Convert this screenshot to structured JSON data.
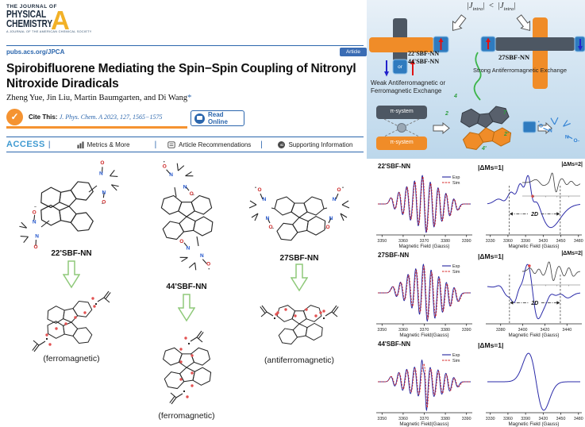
{
  "journal": {
    "masthead_top": "THE JOURNAL OF",
    "masthead_main1": "PHYSICAL",
    "masthead_main2": "CHEMISTRY",
    "masthead_letter": "A",
    "tagline": "A JOURNAL OF THE AMERICAN CHEMICAL SOCIETY",
    "site_url": "pubs.acs.org/JPCA",
    "article_badge": "Article"
  },
  "article": {
    "title": "Spirobifluorene Mediating the Spin−Spin Coupling of Nitronyl Nitroxide Diradicals",
    "authors": "Zheng Yue, Jin Liu, Martin Baumgarten, and Di Wang",
    "corresponding_mark": "*",
    "cite_label": "Cite This:",
    "cite_reference": "J. Phys. Chem. A 2023, 127, 1565−1575",
    "read_online_label": "Read Online",
    "check_icon": "✓"
  },
  "access_bar": {
    "access_label": "ACCESS",
    "separator": "|",
    "items": [
      "Metrics & More",
      "Article Recommendations",
      "Supporting Information"
    ],
    "si_icon_text": "si"
  },
  "structures": {
    "col1": {
      "name": "22'SBF-NN",
      "state": "(ferromagnetic)"
    },
    "col2": {
      "name": "44'SBF-NN",
      "state": "(ferromagnetic)"
    },
    "col3": {
      "name": "27SBF-NN",
      "state": "(antiferromagnetic)"
    }
  },
  "toc_graphic": {
    "inequality": {
      "open": "|",
      "j": "J",
      "sub": "intra",
      "close": "|",
      "lt": "<"
    },
    "left_group": {
      "name_line1": "22'SBF-NN",
      "name_line2": "44'SBF-NN",
      "or_label": "or",
      "caption_line1": "Weak Antiferromagnetic or",
      "caption_line2": "Ferromagnetic Exchange"
    },
    "right_group": {
      "name": "27SBF-NN",
      "caption": "Strong Antiferromagnetic Exchange"
    },
    "pi_system_label": "π-system",
    "position_labels": [
      "4",
      "2",
      "7",
      "2'",
      "4'"
    ],
    "colors": {
      "orange": "#f08c28",
      "dark": "#4d5763",
      "blue_box": "#2f7bbf",
      "red_arrow": "#e01212",
      "blue_arrow": "#2222cc",
      "green": "#3cb54a"
    }
  },
  "chart_data": [
    {
      "id": "epr-22sbf",
      "type": "line",
      "title": "22'SBF-NN",
      "xlabel": "Magnetic Field (Gauss)",
      "xlim": [
        3348,
        3392
      ],
      "xticks": [
        3350,
        3360,
        3370,
        3380,
        3390
      ],
      "legend": [
        {
          "label": "Exp",
          "color": "#24249e",
          "dash": ""
        },
        {
          "label": "Sim",
          "color": "#d42222",
          "dash": "2.5,1.2"
        }
      ],
      "series": [
        {
          "name": "Exp",
          "color": "#24249e",
          "width": 0.9,
          "dash": "",
          "model": "multiplet",
          "center": 3370,
          "spacing": 3.7,
          "sigma": 1.0,
          "amps": [
            1,
            2,
            3,
            4,
            5,
            4,
            3,
            2,
            1
          ]
        },
        {
          "name": "Sim",
          "color": "#d42222",
          "width": 0.8,
          "dash": "2.5,1.2",
          "model": "multiplet",
          "center": 3370.25,
          "spacing": 3.7,
          "sigma": 1.05,
          "amps": [
            1,
            2,
            3,
            4,
            5,
            4,
            3,
            2,
            1
          ]
        }
      ]
    },
    {
      "id": "epr-22sbf-halffield",
      "type": "line",
      "panel_label": "|ΔMs=1|",
      "xlabel": "Magnetic Field (Gauss)",
      "xlim": [
        3325,
        3483
      ],
      "xticks": [
        3330,
        3360,
        3390,
        3420,
        3450,
        3480
      ],
      "series": [
        {
          "name": "Exp",
          "color": "#2a2aa8",
          "width": 1.0,
          "dash": "",
          "model": "components",
          "components": [
            {
              "c": 3412,
              "w": 21,
              "a": 1.0
            },
            {
              "c": 3370,
              "w": 7,
              "a": 0.38
            },
            {
              "c": 3384,
              "w": 5.5,
              "a": 0.42
            },
            {
              "c": 3398,
              "w": 5,
              "a": 0.5
            },
            {
              "c": 3352,
              "w": 9,
              "a": 0.18
            }
          ]
        }
      ],
      "annotations": {
        "dashes_x": [
          3362,
          3449
        ],
        "span_label": "2D",
        "span_y": 0.66,
        "dot_x": 3402
      },
      "inset": {
        "label": "|ΔMs=2|",
        "color": "#3a3a3a",
        "components": [
          {
            "c": 0.3,
            "w": 0.07,
            "a": 0.3
          },
          {
            "c": 0.55,
            "w": 0.035,
            "a": 1.0
          },
          {
            "c": 0.73,
            "w": 0.05,
            "a": 0.4
          },
          {
            "c": 0.88,
            "w": 0.06,
            "a": 0.3
          }
        ]
      }
    },
    {
      "id": "epr-27sbf",
      "type": "line",
      "title": "27SBF-NN",
      "xlabel": "Magnetic Field(Gauss)",
      "xlim": [
        3348,
        3392
      ],
      "xticks": [
        3350,
        3360,
        3370,
        3380,
        3390
      ],
      "legend": [
        {
          "label": "Exp",
          "color": "#24249e",
          "dash": ""
        },
        {
          "label": "Sim",
          "color": "#d42222",
          "dash": "2.5,1.2"
        }
      ],
      "series": [
        {
          "name": "Exp",
          "color": "#24249e",
          "width": 0.9,
          "dash": "",
          "model": "multiplet",
          "center": 3370.5,
          "spacing": 3.6,
          "sigma": 1.1,
          "amps": [
            0.8,
            1.6,
            2.8,
            3.8,
            4.6,
            4.0,
            3.0,
            2.0,
            1.1
          ]
        },
        {
          "name": "Sim",
          "color": "#d42222",
          "width": 0.8,
          "dash": "2.5,1.2",
          "model": "multiplet",
          "center": 3370.8,
          "spacing": 3.6,
          "sigma": 1.15,
          "amps": [
            0.8,
            1.6,
            2.8,
            3.8,
            4.6,
            4.0,
            3.0,
            2.0,
            1.1
          ]
        }
      ]
    },
    {
      "id": "epr-27sbf-halffield",
      "type": "line",
      "panel_label": "|ΔMs=1|",
      "xlabel": "Magnetic Field (Gauss)",
      "xlim": [
        3368,
        3452
      ],
      "xticks": [
        3380,
        3400,
        3420,
        3440
      ],
      "series": [
        {
          "name": "Exp",
          "color": "#2a2aa8",
          "width": 1.0,
          "dash": "",
          "model": "components",
          "components": [
            {
              "c": 3409,
              "w": 5.5,
              "a": 1.5
            },
            {
              "c": 3384,
              "w": 4.5,
              "a": 0.35
            },
            {
              "c": 3391,
              "w": 3.5,
              "a": 0.4
            },
            {
              "c": 3398,
              "w": 3,
              "a": 0.35
            },
            {
              "c": 3419,
              "w": 4,
              "a": 0.35
            },
            {
              "c": 3427,
              "w": 4,
              "a": 0.3
            },
            {
              "c": 3436,
              "w": 5,
              "a": 0.22
            },
            {
              "c": 3378,
              "w": 11,
              "a": 0.28
            }
          ]
        }
      ],
      "annotations": {
        "dashes_x": [
          3388,
          3434
        ],
        "span_label": "2D",
        "span_y": 0.66,
        "dot_x": 3406
      },
      "inset": {
        "label": "|ΔMs=2|",
        "color": "#3a3a3a",
        "components": [
          {
            "c": 0.18,
            "w": 0.05,
            "a": 0.35
          },
          {
            "c": 0.32,
            "w": 0.045,
            "a": 0.4
          },
          {
            "c": 0.5,
            "w": 0.04,
            "a": 1.0
          },
          {
            "c": 0.68,
            "w": 0.05,
            "a": 0.55
          },
          {
            "c": 0.84,
            "w": 0.045,
            "a": 0.5
          }
        ]
      }
    },
    {
      "id": "epr-44sbf",
      "type": "line",
      "title": "44'SBF-NN",
      "xlabel": "Magnetic Field(Gauss)",
      "xlim": [
        3348,
        3392
      ],
      "xticks": [
        3350,
        3360,
        3370,
        3380,
        3390
      ],
      "legend": [
        {
          "label": "Exp",
          "color": "#24249e",
          "dash": ""
        },
        {
          "label": "Sim",
          "color": "#d42222",
          "dash": "2.5,1.2"
        }
      ],
      "series": [
        {
          "name": "Exp",
          "color": "#24249e",
          "width": 0.9,
          "dash": "",
          "model": "multiplet",
          "center": 3370,
          "spacing": 3.7,
          "sigma": 1.0,
          "amps": [
            1,
            1.9,
            2.6,
            3.1,
            3.4,
            3.1,
            2.6,
            1.9,
            1
          ],
          "extra": [
            {
              "c": 3370.6,
              "w": 0.55,
              "a": 2.6
            },
            {
              "c": 3369.2,
              "w": 0.5,
              "a": 1.4
            }
          ]
        },
        {
          "name": "Sim",
          "color": "#d42222",
          "width": 0.8,
          "dash": "2.5,1.2",
          "model": "multiplet",
          "center": 3370.3,
          "spacing": 3.7,
          "sigma": 1.1,
          "amps": [
            1,
            1.9,
            2.6,
            3.1,
            3.4,
            3.1,
            2.6,
            1.9,
            1
          ],
          "extra": [
            {
              "c": 3370.9,
              "w": 0.6,
              "a": 2.4
            }
          ]
        }
      ]
    },
    {
      "id": "epr-44sbf-halffield",
      "type": "line",
      "panel_label": "|ΔMs=1|",
      "xlabel": "Magnetic Field (Gauss)",
      "xlim": [
        3325,
        3483
      ],
      "xticks": [
        3330,
        3360,
        3390,
        3420,
        3450,
        3480
      ],
      "series": [
        {
          "name": "Exp",
          "color": "#2a2aa8",
          "width": 1.0,
          "dash": "",
          "model": "components",
          "components": [
            {
              "c": 3408,
              "w": 13,
              "a": 1.0
            }
          ]
        }
      ]
    }
  ]
}
